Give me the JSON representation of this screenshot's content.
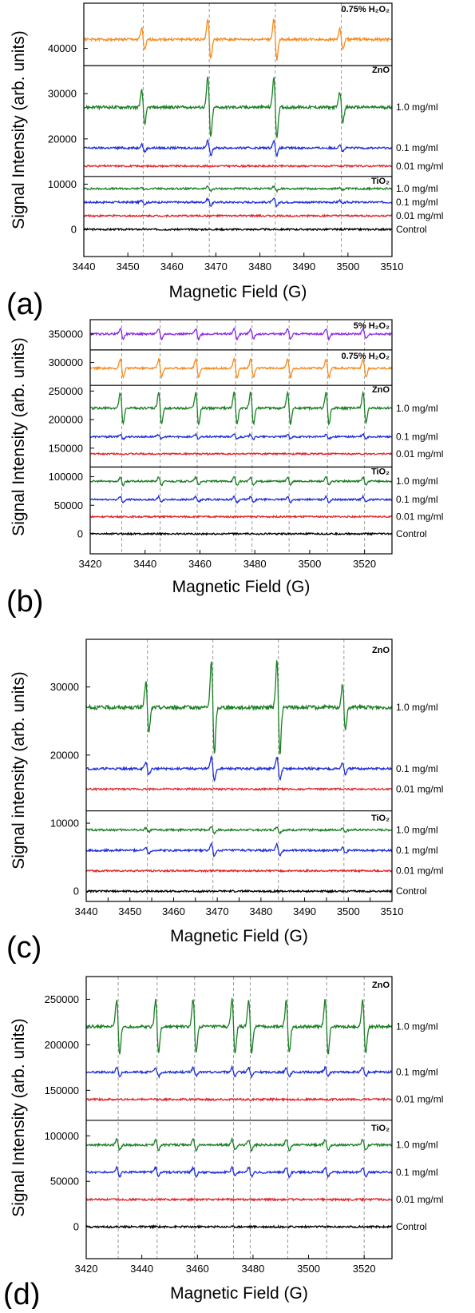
{
  "chart_data": [
    {
      "panel": "(a)",
      "type": "line",
      "xlabel": "Magnetic Field (G)",
      "ylabel": "Signal Intensity (arb. units)",
      "xlim": [
        3440,
        3510
      ],
      "xticks": [
        3440,
        3450,
        3460,
        3470,
        3480,
        3490,
        3500,
        3510
      ],
      "ylim": [
        -6000,
        50000
      ],
      "yticks": [
        0,
        10000,
        20000,
        30000,
        40000
      ],
      "dividers": [
        11700,
        36200
      ],
      "peaks": [
        3453.5,
        3468.5,
        3483.5,
        3498.5
      ],
      "sample_labels": [
        {
          "text": "TiO₂",
          "y": 10800
        },
        {
          "text": "ZnO",
          "y": 35300
        },
        {
          "text": "0.75% H₂O₂",
          "y": 48800
        }
      ],
      "series": [
        {
          "name": "Control",
          "group": "Control",
          "color": "#000000",
          "baseline": 0,
          "amplitude": 0
        },
        {
          "name": "0.01 mg/ml",
          "group": "TiO₂",
          "color": "#e0262b",
          "baseline": 3000,
          "amplitude": 0
        },
        {
          "name": "0.1 mg/ml",
          "group": "TiO₂",
          "color": "#1f2fd6",
          "baseline": 6000,
          "amplitude": 800
        },
        {
          "name": "1.0 mg/ml",
          "group": "TiO₂",
          "color": "#1a7f24",
          "baseline": 9000,
          "amplitude": 500
        },
        {
          "name": "0.01 mg/ml",
          "group": "ZnO",
          "color": "#e0262b",
          "baseline": 14000,
          "amplitude": 0
        },
        {
          "name": "0.1 mg/ml",
          "group": "ZnO",
          "color": "#1f2fd6",
          "baseline": 18000,
          "amplitude": 1600
        },
        {
          "name": "1.0 mg/ml",
          "group": "ZnO",
          "color": "#1a7f24",
          "baseline": 27000,
          "amplitude": 6800
        },
        {
          "name": "0.75% H₂O₂",
          "group": "0.75% H₂O₂",
          "color": "#f68b1f",
          "baseline": 42000,
          "amplitude": 4500
        }
      ]
    },
    {
      "panel": "(b)",
      "type": "line",
      "xlabel": "Magnetic Field (G)",
      "ylabel": "Signal Intensity (arb. units)",
      "xlim": [
        3420,
        3530
      ],
      "xticks": [
        3420,
        3440,
        3460,
        3480,
        3500,
        3520
      ],
      "ylim": [
        -35000,
        375000
      ],
      "yticks": [
        0,
        50000,
        100000,
        150000,
        200000,
        250000,
        300000,
        350000
      ],
      "dividers": [
        117000,
        260000,
        322000
      ],
      "peaks": [
        3431.5,
        3445.5,
        3459,
        3473,
        3479,
        3492.5,
        3506.5,
        3520
      ],
      "sample_labels": [
        {
          "text": "TiO₂",
          "y": 110000
        },
        {
          "text": "ZnO",
          "y": 253000
        },
        {
          "text": "0.75% H₂O₂",
          "y": 312000
        },
        {
          "text": "5% H₂O₂",
          "y": 365000
        }
      ],
      "series": [
        {
          "name": "Control",
          "group": "Control",
          "color": "#000000",
          "baseline": 0,
          "amplitude": 0
        },
        {
          "name": "0.01 mg/ml",
          "group": "TiO₂",
          "color": "#e0262b",
          "baseline": 30000,
          "amplitude": 0
        },
        {
          "name": "0.1 mg/ml",
          "group": "TiO₂",
          "color": "#1f2fd6",
          "baseline": 60000,
          "amplitude": 5000
        },
        {
          "name": "1.0 mg/ml",
          "group": "TiO₂",
          "color": "#1a7f24",
          "baseline": 92000,
          "amplitude": 7000
        },
        {
          "name": "0.01 mg/ml",
          "group": "ZnO",
          "color": "#e0262b",
          "baseline": 140000,
          "amplitude": 0
        },
        {
          "name": "0.1 mg/ml",
          "group": "ZnO",
          "color": "#1f2fd6",
          "baseline": 170000,
          "amplitude": 4000
        },
        {
          "name": "1.0 mg/ml",
          "group": "ZnO",
          "color": "#1a7f24",
          "baseline": 220000,
          "amplitude": 28000
        },
        {
          "name": "0.75% H₂O₂",
          "group": "0.75% H₂O₂",
          "color": "#f68b1f",
          "baseline": 290000,
          "amplitude": 16000
        },
        {
          "name": "5% H₂O₂",
          "group": "5% H₂O₂",
          "color": "#8a2be2",
          "baseline": 350000,
          "amplitude": 9000
        }
      ]
    },
    {
      "panel": "(c)",
      "type": "line",
      "xlabel": "Magnetic Field (G)",
      "ylabel": "Signal intensity (arb. units)",
      "xlim": [
        3440,
        3510
      ],
      "xticks": [
        3440,
        3445,
        3450,
        3455,
        3460,
        3465,
        3470,
        3475,
        3480,
        3485,
        3490,
        3495,
        3500,
        3505,
        3510
      ],
      "xticklabels": [
        "3440",
        "",
        "3450",
        "",
        "3460",
        "",
        "3470",
        "",
        "3480",
        "",
        "3490",
        "",
        "3500",
        "",
        "3510"
      ],
      "ylim": [
        -1500,
        37000
      ],
      "yticks": [
        0,
        10000,
        20000,
        30000
      ],
      "dividers": [
        11800
      ],
      "peaks": [
        3454,
        3469,
        3484,
        3499
      ],
      "sample_labels": [
        {
          "text": "TiO₂",
          "y": 10800
        },
        {
          "text": "ZnO",
          "y": 35500
        }
      ],
      "series": [
        {
          "name": "Control",
          "group": "Control",
          "color": "#000000",
          "baseline": 0,
          "amplitude": 0
        },
        {
          "name": "0.01 mg/ml",
          "group": "TiO₂",
          "color": "#e0262b",
          "baseline": 3000,
          "amplitude": 0
        },
        {
          "name": "0.1 mg/ml",
          "group": "TiO₂",
          "color": "#1f2fd6",
          "baseline": 6000,
          "amplitude": 900
        },
        {
          "name": "1.0 mg/ml",
          "group": "TiO₂",
          "color": "#1a7f24",
          "baseline": 9000,
          "amplitude": 500
        },
        {
          "name": "0.01 mg/ml",
          "group": "ZnO",
          "color": "#e0262b",
          "baseline": 15000,
          "amplitude": 0
        },
        {
          "name": "0.1 mg/ml",
          "group": "ZnO",
          "color": "#1f2fd6",
          "baseline": 18000,
          "amplitude": 1700
        },
        {
          "name": "1.0 mg/ml",
          "group": "ZnO",
          "color": "#1a7f24",
          "baseline": 27000,
          "amplitude": 7000
        }
      ]
    },
    {
      "panel": "(d)",
      "type": "line",
      "xlabel": "Magnetic Field (G)",
      "ylabel": "Signal Intensity (arb. units)",
      "xlim": [
        3420,
        3530
      ],
      "xticks": [
        3420,
        3440,
        3460,
        3480,
        3500,
        3520
      ],
      "ylim": [
        -35000,
        275000
      ],
      "yticks": [
        0,
        50000,
        100000,
        150000,
        200000,
        250000
      ],
      "dividers": [
        117000
      ],
      "peaks": [
        3431.5,
        3445.5,
        3459,
        3473,
        3479,
        3492.5,
        3506.5,
        3520
      ],
      "sample_labels": [
        {
          "text": "TiO₂",
          "y": 109000
        },
        {
          "text": "ZnO",
          "y": 266000
        }
      ],
      "series": [
        {
          "name": "Control",
          "group": "Control",
          "color": "#000000",
          "baseline": 0,
          "amplitude": 0
        },
        {
          "name": "0.01 mg/ml",
          "group": "TiO₂",
          "color": "#e0262b",
          "baseline": 30000,
          "amplitude": 0
        },
        {
          "name": "0.1 mg/ml",
          "group": "TiO₂",
          "color": "#1f2fd6",
          "baseline": 60000,
          "amplitude": 5000
        },
        {
          "name": "1.0 mg/ml",
          "group": "TiO₂",
          "color": "#1a7f24",
          "baseline": 90000,
          "amplitude": 6000
        },
        {
          "name": "0.01 mg/ml",
          "group": "ZnO",
          "color": "#e0262b",
          "baseline": 140000,
          "amplitude": 0
        },
        {
          "name": "0.1 mg/ml",
          "group": "ZnO",
          "color": "#1f2fd6",
          "baseline": 170000,
          "amplitude": 5000
        },
        {
          "name": "1.0 mg/ml",
          "group": "ZnO",
          "color": "#1a7f24",
          "baseline": 220000,
          "amplitude": 30000
        }
      ]
    }
  ]
}
